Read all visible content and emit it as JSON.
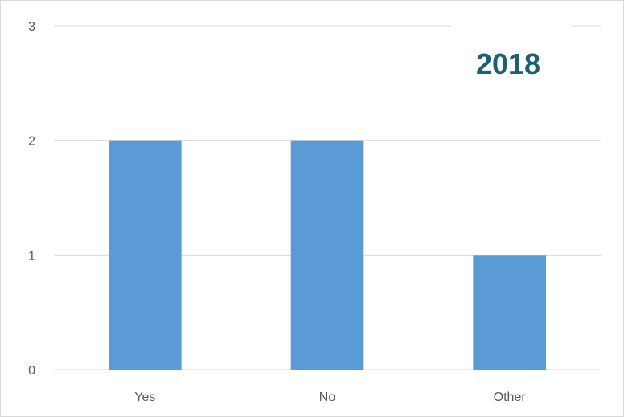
{
  "chart_data": {
    "type": "bar",
    "title": "2018",
    "categories": [
      "Yes",
      "No",
      "Other"
    ],
    "values": [
      2,
      2,
      1
    ],
    "xlabel": "",
    "ylabel": "",
    "ylim": [
      0,
      3
    ],
    "yticks": [
      0,
      1,
      2,
      3
    ],
    "grid": true,
    "legend": "none",
    "colors": {
      "bar": "#5b9bd5",
      "grid": "#d9d9d9",
      "title": "#1f5f73",
      "tick": "#595959"
    }
  }
}
